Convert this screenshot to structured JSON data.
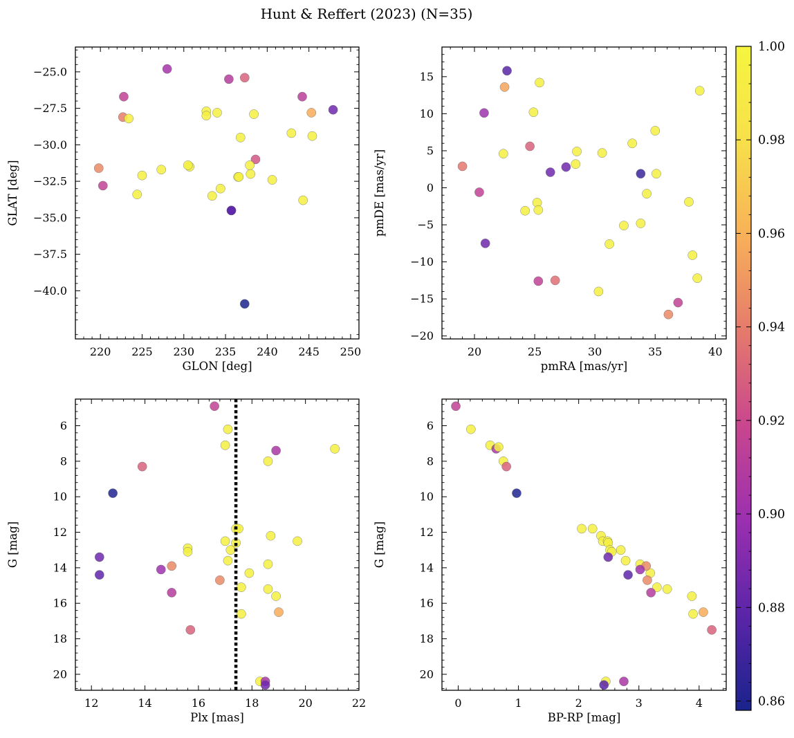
{
  "title": "Hunt & Reffert (2023) (N=35)",
  "colorbar": {
    "vmin": 0.858,
    "vmax": 1.0,
    "ticks": [
      0.86,
      0.88,
      0.9,
      0.92,
      0.94,
      0.96,
      0.98,
      1.0
    ],
    "tick_labels": [
      "0.86",
      "0.88",
      "0.90",
      "0.92",
      "0.94",
      "0.96",
      "0.98",
      "1.00"
    ],
    "colormap": "plasma",
    "stops": [
      "#1a238c",
      "#5a25a8",
      "#9b2fb0",
      "#c8468e",
      "#e57a6c",
      "#f8b058",
      "#f7e04a",
      "#f5f53f"
    ]
  },
  "chart_data": [
    {
      "type": "scatter",
      "id": "glon-glat",
      "xlabel": "GLON [deg]",
      "ylabel": "GLAT [deg]",
      "xlim": [
        217,
        251
      ],
      "ylim": [
        -43.3,
        -23.3
      ],
      "xticks": [
        220,
        225,
        230,
        235,
        240,
        245,
        250
      ],
      "xtick_labels": [
        "220",
        "225",
        "230",
        "235",
        "240",
        "245",
        "250"
      ],
      "yticks": [
        -25.0,
        -27.5,
        -30.0,
        -32.5,
        -35.0,
        -37.5,
        -40.0
      ],
      "ytick_labels": [
        "−25.0",
        "−27.5",
        "−30.0",
        "−32.5",
        "−35.0",
        "−37.5",
        "−40.0"
      ],
      "x": [
        228.0,
        235.4,
        237.3,
        222.8,
        244.2,
        247.9,
        222.7,
        223.4,
        245.3,
        232.7,
        234.0,
        232.7,
        238.4,
        236.8,
        242.9,
        245.4,
        238.6,
        219.8,
        230.7,
        230.5,
        237.9,
        220.3,
        227.3,
        225.0,
        236.5,
        236.6,
        238.0,
        240.6,
        234.4,
        224.4,
        233.4,
        244.3,
        235.7,
        235.7,
        237.3
      ],
      "y": [
        -24.8,
        -25.5,
        -25.4,
        -26.7,
        -26.7,
        -27.6,
        -28.1,
        -28.2,
        -27.8,
        -27.7,
        -27.8,
        -28.0,
        -27.9,
        -29.5,
        -29.2,
        -29.4,
        -31.0,
        -31.6,
        -31.5,
        -31.4,
        -31.4,
        -32.8,
        -31.7,
        -32.1,
        -32.2,
        -32.2,
        -32.0,
        -32.4,
        -33.0,
        -33.4,
        -33.5,
        -33.8,
        -34.5,
        -34.5,
        -40.9
      ],
      "c": [
        0.903,
        0.91,
        0.93,
        0.915,
        0.912,
        0.885,
        0.94,
        0.995,
        0.958,
        0.995,
        0.995,
        0.995,
        0.995,
        0.995,
        0.995,
        0.995,
        0.925,
        0.945,
        0.995,
        0.995,
        0.995,
        0.915,
        0.995,
        0.995,
        0.995,
        0.995,
        0.995,
        0.995,
        0.995,
        0.995,
        0.995,
        0.995,
        0.885,
        0.878,
        0.858
      ]
    },
    {
      "type": "scatter",
      "id": "pmra-pmde",
      "xlabel": "pmRA [mas/yr]",
      "ylabel": "pmDE [mas/yr]",
      "xlim": [
        17.3,
        40.9
      ],
      "ylim": [
        -20.4,
        19.0
      ],
      "xticks": [
        20,
        25,
        30,
        35,
        40
      ],
      "xtick_labels": [
        "20",
        "25",
        "30",
        "35",
        "40"
      ],
      "yticks": [
        15,
        10,
        5,
        0,
        -5,
        -10,
        -15,
        -20
      ],
      "ytick_labels": [
        "15",
        "10",
        "5",
        "0",
        "−5",
        "−10",
        "−15",
        "−20"
      ],
      "x": [
        22.7,
        22.5,
        25.4,
        38.7,
        20.8,
        24.9,
        35.0,
        33.1,
        24.6,
        28.5,
        30.6,
        22.4,
        28.4,
        19.0,
        26.3,
        27.6,
        33.8,
        35.1,
        20.4,
        34.3,
        25.2,
        24.2,
        25.3,
        32.4,
        33.8,
        20.9,
        31.2,
        38.1,
        37.8,
        38.5,
        25.3,
        26.7,
        30.3,
        36.9,
        36.1
      ],
      "y": [
        15.8,
        13.6,
        14.2,
        13.1,
        10.1,
        10.2,
        7.7,
        6.0,
        5.6,
        4.9,
        4.7,
        4.6,
        3.2,
        2.9,
        2.1,
        2.8,
        1.9,
        1.9,
        -0.6,
        -0.8,
        -2.0,
        -3.1,
        -3.0,
        -5.1,
        -4.8,
        -7.5,
        -7.6,
        -9.1,
        -1.9,
        -12.2,
        -12.6,
        -12.5,
        -14.0,
        -15.5,
        -17.1
      ],
      "c": [
        0.878,
        0.955,
        0.995,
        0.995,
        0.9,
        0.995,
        0.995,
        0.995,
        0.93,
        0.995,
        0.995,
        0.995,
        0.995,
        0.938,
        0.885,
        0.885,
        0.868,
        0.995,
        0.915,
        0.995,
        0.995,
        0.995,
        0.995,
        0.995,
        0.995,
        0.885,
        0.995,
        0.995,
        0.995,
        0.995,
        0.915,
        0.935,
        0.995,
        0.915,
        0.945
      ]
    },
    {
      "type": "scatter",
      "id": "plx-g",
      "xlabel": "Plx [mas]",
      "ylabel": "G [mag]",
      "xlim": [
        11.4,
        22.0
      ],
      "ylim": [
        20.9,
        4.5
      ],
      "inverted_y": true,
      "vline": 17.4,
      "xticks": [
        12,
        14,
        16,
        18,
        20,
        22
      ],
      "xtick_labels": [
        "12",
        "14",
        "16",
        "18",
        "20",
        "22"
      ],
      "yticks": [
        6,
        8,
        10,
        12,
        14,
        16,
        18,
        20
      ],
      "ytick_labels": [
        "6",
        "8",
        "10",
        "12",
        "14",
        "16",
        "18",
        "20"
      ],
      "x": [
        16.6,
        17.1,
        17.0,
        18.9,
        21.1,
        18.6,
        13.9,
        12.8,
        17.4,
        17.5,
        18.7,
        19.7,
        17.0,
        17.4,
        17.2,
        15.6,
        15.6,
        17.1,
        18.6,
        17.9,
        12.3,
        15.0,
        14.6,
        12.3,
        16.8,
        17.6,
        18.6,
        18.9,
        15.0,
        17.6,
        19.0,
        15.7,
        18.3,
        18.5,
        18.5
      ],
      "y": [
        4.9,
        6.2,
        7.1,
        7.4,
        7.3,
        8.0,
        8.3,
        9.8,
        11.8,
        11.8,
        12.2,
        12.5,
        12.5,
        12.6,
        13.0,
        12.9,
        13.1,
        13.6,
        13.8,
        14.3,
        13.4,
        13.9,
        14.1,
        14.4,
        14.7,
        15.1,
        15.2,
        15.6,
        15.4,
        16.6,
        16.5,
        17.5,
        20.4,
        20.4,
        20.6
      ],
      "c": [
        0.915,
        0.995,
        0.995,
        0.905,
        0.995,
        0.995,
        0.93,
        0.86,
        0.995,
        0.995,
        0.995,
        0.995,
        0.995,
        0.995,
        0.995,
        0.995,
        0.995,
        0.995,
        0.995,
        0.995,
        0.885,
        0.945,
        0.9,
        0.88,
        0.945,
        0.995,
        0.995,
        0.995,
        0.91,
        0.995,
        0.958,
        0.93,
        0.995,
        0.905,
        0.885
      ]
    },
    {
      "type": "scatter",
      "id": "bprp-g",
      "xlabel": "BP-RP [mag]",
      "ylabel": "G [mag]",
      "xlim": [
        -0.27,
        4.45
      ],
      "ylim": [
        20.9,
        4.5
      ],
      "inverted_y": true,
      "xticks": [
        0,
        1,
        2,
        3,
        4
      ],
      "xtick_labels": [
        "0",
        "1",
        "2",
        "3",
        "4"
      ],
      "yticks": [
        6,
        8,
        10,
        12,
        14,
        16,
        18,
        20
      ],
      "ytick_labels": [
        "6",
        "8",
        "10",
        "12",
        "14",
        "16",
        "18",
        "20"
      ],
      "x": [
        -0.04,
        0.21,
        0.53,
        0.63,
        0.67,
        0.75,
        0.8,
        0.97,
        2.05,
        2.23,
        2.37,
        2.4,
        2.48,
        2.49,
        2.52,
        2.55,
        2.7,
        2.78,
        3.02,
        3.19,
        2.49,
        3.12,
        3.02,
        2.82,
        3.14,
        3.3,
        3.47,
        3.88,
        3.2,
        3.9,
        4.07,
        4.21,
        2.45,
        2.75,
        2.42
      ],
      "y": [
        4.9,
        6.2,
        7.1,
        7.3,
        7.2,
        8.0,
        8.3,
        9.8,
        11.8,
        11.8,
        12.2,
        12.5,
        12.5,
        12.6,
        13.0,
        13.1,
        13.0,
        13.6,
        13.8,
        14.3,
        13.4,
        13.9,
        14.1,
        14.4,
        14.7,
        15.1,
        15.2,
        15.6,
        15.4,
        16.6,
        16.5,
        17.5,
        20.4,
        20.4,
        20.6
      ],
      "c": [
        0.915,
        0.995,
        0.995,
        0.905,
        0.995,
        0.995,
        0.93,
        0.86,
        0.995,
        0.995,
        0.995,
        0.995,
        0.995,
        0.995,
        0.995,
        0.995,
        0.995,
        0.995,
        0.995,
        0.995,
        0.885,
        0.945,
        0.9,
        0.88,
        0.945,
        0.995,
        0.995,
        0.995,
        0.91,
        0.995,
        0.958,
        0.93,
        0.995,
        0.905,
        0.878
      ]
    }
  ]
}
